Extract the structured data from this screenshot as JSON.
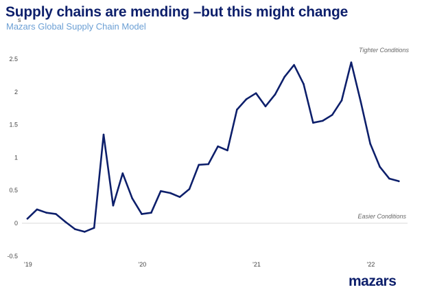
{
  "header": {
    "title": "Supply chains are mending –but this might change",
    "subtitle": "Mazars Global Supply Chain Model",
    "unit": "s"
  },
  "brand": {
    "logo_text": "mazars",
    "color": "#0d1f6b"
  },
  "chart_data": {
    "type": "line",
    "title": "Supply chains are mending –but this might change",
    "subtitle": "Mazars Global Supply Chain Model",
    "xlabel": "",
    "ylabel": "",
    "ylim": [
      -0.5,
      2.5
    ],
    "yticks": [
      -0.5,
      0,
      0.5,
      1,
      1.5,
      2,
      2.5
    ],
    "ytick_labels": [
      "-0.5",
      "0",
      "0.5",
      "1",
      "1.5",
      "2",
      "2.5"
    ],
    "xticks": [
      "'19",
      "'20",
      "'21",
      "'22"
    ],
    "grid": false,
    "line_color": "#0d1f6b",
    "annotations": {
      "top": "Tighter Conditions",
      "bottom": "Easier Conditions"
    },
    "series": [
      {
        "x": [
          "2019-01",
          "2019-02",
          "2019-03",
          "2019-04",
          "2019-05",
          "2019-06",
          "2019-07",
          "2019-08",
          "2019-09",
          "2019-10",
          "2019-11",
          "2019-12",
          "2020-01",
          "2020-02",
          "2020-03",
          "2020-04",
          "2020-05",
          "2020-06",
          "2020-07",
          "2020-08",
          "2020-09",
          "2020-10",
          "2020-11",
          "2020-12",
          "2021-01",
          "2021-02",
          "2021-03",
          "2021-04",
          "2021-05",
          "2021-06",
          "2021-07",
          "2021-08",
          "2021-09",
          "2021-10",
          "2021-11",
          "2021-12",
          "2022-01",
          "2022-02",
          "2022-03",
          "2022-04"
        ],
        "values": [
          0.07,
          0.21,
          0.16,
          0.14,
          0.02,
          -0.09,
          -0.13,
          -0.07,
          1.35,
          0.27,
          0.76,
          0.38,
          0.14,
          0.16,
          0.49,
          0.46,
          0.4,
          0.52,
          0.89,
          0.9,
          1.17,
          1.11,
          1.73,
          1.89,
          1.98,
          1.78,
          1.96,
          2.23,
          2.41,
          2.12,
          1.53,
          1.56,
          1.65,
          1.87,
          2.45,
          1.85,
          1.21,
          0.86,
          0.68,
          0.64
        ]
      }
    ]
  }
}
